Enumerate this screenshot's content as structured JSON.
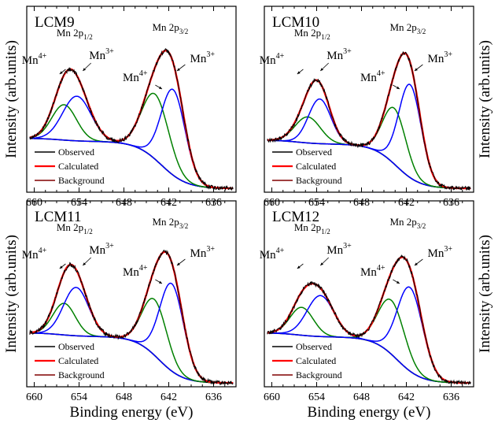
{
  "figure": {
    "xlabel": "Binding energy (eV)",
    "ylabel": "Intensity (arb.units)"
  },
  "colors": {
    "observed": "#000000",
    "calculated": "#ff0000",
    "mn3_component": "#0000ff",
    "mn4_component": "#008000",
    "background": "#800000",
    "axes": "#000000"
  },
  "chart_data": [
    {
      "type": "line",
      "title": "LCM9",
      "xlabel": "Binding energy (eV)",
      "ylabel": "Intensity (arb.units)",
      "xlim": [
        661,
        633
      ],
      "x_reversed": true,
      "xticks": [
        660,
        654,
        648,
        642,
        636
      ],
      "ylim": [
        0,
        1
      ],
      "y_tick_labels": false,
      "grid": false,
      "legend_position": "bottom-left",
      "legend": [
        "Observed",
        "Calculated",
        "Background"
      ],
      "peak_labels": [
        "Mn 2p",
        "Mn 2p"
      ],
      "peak_label_subscripts": [
        "1/2",
        "3/2"
      ],
      "ion_labels": [
        "Mn",
        "Mn",
        "Mn",
        "Mn"
      ],
      "ion_label_superscripts": [
        "4+",
        "3+",
        "4+",
        "3+"
      ],
      "components": [
        {
          "role": "Mn4+ 2p1/2",
          "center": 656.0,
          "sigma": 1.65,
          "amp": 0.19
        },
        {
          "role": "Mn3+ 2p1/2",
          "center": 654.3,
          "sigma": 1.9,
          "amp": 0.24
        },
        {
          "role": "Mn4+ 2p3/2",
          "center": 643.8,
          "sigma": 1.8,
          "amp": 0.35
        },
        {
          "role": "Mn3+ 2p3/2",
          "center": 641.4,
          "sigma": 1.6,
          "amp": 0.46
        }
      ],
      "background": {
        "low": 0.02,
        "high": 0.29,
        "step1_center": 656.5,
        "step1_width": 1.4,
        "step1_fraction": 0.06,
        "step2_center": 643.0,
        "step2_width": 1.7
      }
    },
    {
      "type": "line",
      "title": "LCM10",
      "xlabel": "Binding energy (eV)",
      "ylabel": "Intensity (arb.units)",
      "xlim": [
        661,
        633
      ],
      "x_reversed": true,
      "xticks": [
        660,
        654,
        648,
        642,
        636
      ],
      "ylim": [
        0,
        1
      ],
      "y_tick_labels": false,
      "grid": false,
      "legend_position": "bottom-left",
      "legend": [
        "Observed",
        "Calculated",
        "Background"
      ],
      "peak_labels": [
        "Mn 2p",
        "Mn 2p"
      ],
      "peak_label_subscripts": [
        "1/2",
        "3/2"
      ],
      "ion_labels": [
        "Mn",
        "Mn",
        "Mn",
        "Mn"
      ],
      "ion_label_superscripts": [
        "4+",
        "3+",
        "4+",
        "3+"
      ],
      "components": [
        {
          "role": "Mn4+ 2p1/2",
          "center": 655.2,
          "sigma": 1.7,
          "amp": 0.14
        },
        {
          "role": "Mn3+ 2p1/2",
          "center": 653.6,
          "sigma": 1.5,
          "amp": 0.24
        },
        {
          "role": "Mn4+ 2p3/2",
          "center": 643.6,
          "sigma": 1.55,
          "amp": 0.3
        },
        {
          "role": "Mn3+ 2p3/2",
          "center": 641.5,
          "sigma": 1.5,
          "amp": 0.5
        }
      ],
      "background": {
        "low": 0.02,
        "high": 0.28,
        "step1_center": 656.5,
        "step1_width": 1.4,
        "step1_fraction": 0.08,
        "step2_center": 643.3,
        "step2_width": 1.6
      }
    },
    {
      "type": "line",
      "title": "LCM11",
      "xlabel": "Binding energy (eV)",
      "ylabel": "Intensity (arb.units)",
      "xlim": [
        661,
        633
      ],
      "x_reversed": true,
      "xticks": [
        660,
        654,
        648,
        642,
        636
      ],
      "ylim": [
        0,
        1
      ],
      "y_tick_labels": false,
      "grid": false,
      "legend_position": "bottom-left",
      "legend": [
        "Observed",
        "Calculated",
        "Background"
      ],
      "peak_labels": [
        "Mn 2p",
        "Mn 2p"
      ],
      "peak_label_subscripts": [
        "1/2",
        "3/2"
      ],
      "ion_labels": [
        "Mn",
        "Mn",
        "Mn",
        "Mn"
      ],
      "ion_label_superscripts": [
        "4+",
        "3+",
        "4+",
        "3+"
      ],
      "components": [
        {
          "role": "Mn4+ 2p1/2",
          "center": 656.0,
          "sigma": 1.5,
          "amp": 0.17
        },
        {
          "role": "Mn3+ 2p1/2",
          "center": 654.4,
          "sigma": 1.7,
          "amp": 0.26
        },
        {
          "role": "Mn4+ 2p3/2",
          "center": 643.9,
          "sigma": 1.65,
          "amp": 0.3
        },
        {
          "role": "Mn3+ 2p3/2",
          "center": 641.6,
          "sigma": 1.6,
          "amp": 0.47
        }
      ],
      "background": {
        "low": 0.02,
        "high": 0.29,
        "step1_center": 656.5,
        "step1_width": 1.4,
        "step1_fraction": 0.07,
        "step2_center": 643.3,
        "step2_width": 1.6
      }
    },
    {
      "type": "line",
      "title": "LCM12",
      "xlabel": "Binding energy (eV)",
      "ylabel": "Intensity (arb.units)",
      "xlim": [
        661,
        633
      ],
      "x_reversed": true,
      "xticks": [
        660,
        654,
        648,
        642,
        636
      ],
      "ylim": [
        0,
        1
      ],
      "y_tick_labels": false,
      "grid": false,
      "legend_position": "bottom-left",
      "legend": [
        "Observed",
        "Calculated",
        "Background"
      ],
      "peak_labels": [
        "Mn 2p",
        "Mn 2p"
      ],
      "peak_label_subscripts": [
        "1/2",
        "3/2"
      ],
      "ion_labels": [
        "Mn",
        "Mn",
        "Mn",
        "Mn"
      ],
      "ion_label_superscripts": [
        "4+",
        "3+",
        "4+",
        "3+"
      ],
      "components": [
        {
          "role": "Mn4+ 2p1/2",
          "center": 656.0,
          "sigma": 1.55,
          "amp": 0.15
        },
        {
          "role": "Mn3+ 2p1/2",
          "center": 653.5,
          "sigma": 1.8,
          "amp": 0.22
        },
        {
          "role": "Mn4+ 2p3/2",
          "center": 644.0,
          "sigma": 1.75,
          "amp": 0.29
        },
        {
          "role": "Mn3+ 2p3/2",
          "center": 641.5,
          "sigma": 1.7,
          "amp": 0.45
        }
      ],
      "background": {
        "low": 0.02,
        "high": 0.29,
        "step1_center": 656.5,
        "step1_width": 1.4,
        "step1_fraction": 0.08,
        "step2_center": 643.2,
        "step2_width": 1.6
      }
    }
  ]
}
